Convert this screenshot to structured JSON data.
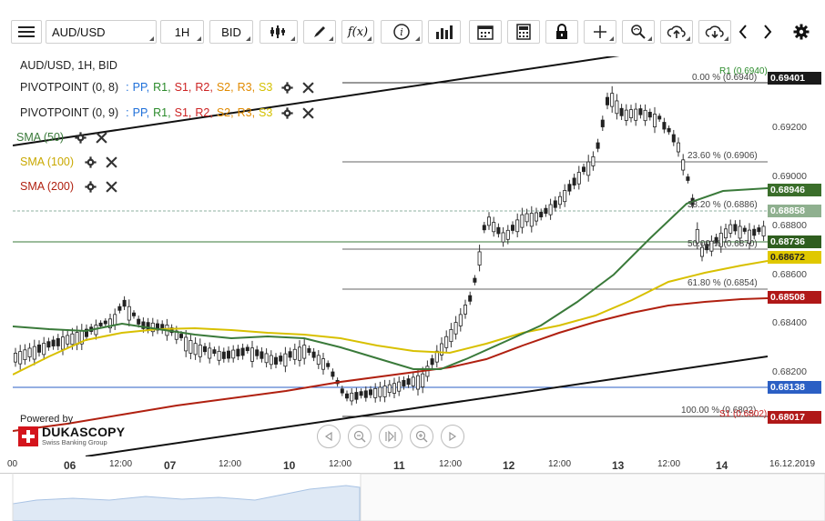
{
  "toolbar": {
    "menu_icon": "hamburger-icon",
    "instrument": "AUD/USD",
    "timeframe": "1H",
    "side": "BID",
    "fx_label": "f(x)",
    "info_label": "i"
  },
  "legend": {
    "title": "AUD/USD, 1H, BID",
    "pivot1_name": "PIVOTPOINT (0, 8)",
    "pivot2_name": "PIVOTPOINT (0, 9)",
    "pivot_sep": ":",
    "pivot_items": [
      "PP,",
      "R1,",
      "S1,",
      "R2,",
      "S2,",
      "R3,",
      "S3"
    ],
    "pivot_colors": [
      "#1e6fd9",
      "#2a8a2a",
      "#cc2222",
      "#cc2222",
      "#e08a00",
      "#e08a00",
      "#d4c000"
    ],
    "sma50": "SMA (50)",
    "sma100": "SMA (100)",
    "sma200": "SMA (200)",
    "sma50_color": "#3a7a3a",
    "sma100_color": "#d4b800",
    "sma200_color": "#b02010"
  },
  "fib": {
    "f0": "0.00 % (0.6940)",
    "f236": "23.60 % (0.6906)",
    "f382": "38.20 % (0.6886)",
    "f50": "50.00 % (0.6870)",
    "f618": "61.80 % (0.6854)",
    "f100": "100.00 % (0.6802)",
    "r1": "R1 (0.6940)",
    "s1": "S1 (0.6802)"
  },
  "price_axis": {
    "ticks": [
      "0.69200",
      "0.69000",
      "0.68800",
      "0.68600",
      "0.68400",
      "0.68200"
    ],
    "labels": [
      {
        "text": "0.69401",
        "bg": "#1a1a1a",
        "fg": "#ffffff"
      },
      {
        "text": "0.68946",
        "bg": "#3a6e2a",
        "fg": "#ffffff"
      },
      {
        "text": "0.68858",
        "bg": "#8fb08f",
        "fg": "#ffffff"
      },
      {
        "text": "0.68736",
        "bg": "#2f5e1f",
        "fg": "#ffffff"
      },
      {
        "text": "0.68672",
        "bg": "#e0c800",
        "fg": "#222222"
      },
      {
        "text": "0.68508",
        "bg": "#b01818",
        "fg": "#ffffff"
      },
      {
        "text": "0.68138",
        "bg": "#2b5fc4",
        "fg": "#ffffff"
      },
      {
        "text": "0.68017",
        "bg": "#b01818",
        "fg": "#ffffff"
      }
    ]
  },
  "time_axis": [
    "00",
    "06",
    "12:00",
    "07",
    "12:00",
    "10",
    "12:00",
    "11",
    "12:00",
    "12",
    "12:00",
    "13",
    "12:00",
    "14",
    "16.12.2019"
  ],
  "logo": {
    "powered_by": "Powered by",
    "brand": "DUKASCOPY",
    "tagline": "Swiss Banking Group"
  }
}
